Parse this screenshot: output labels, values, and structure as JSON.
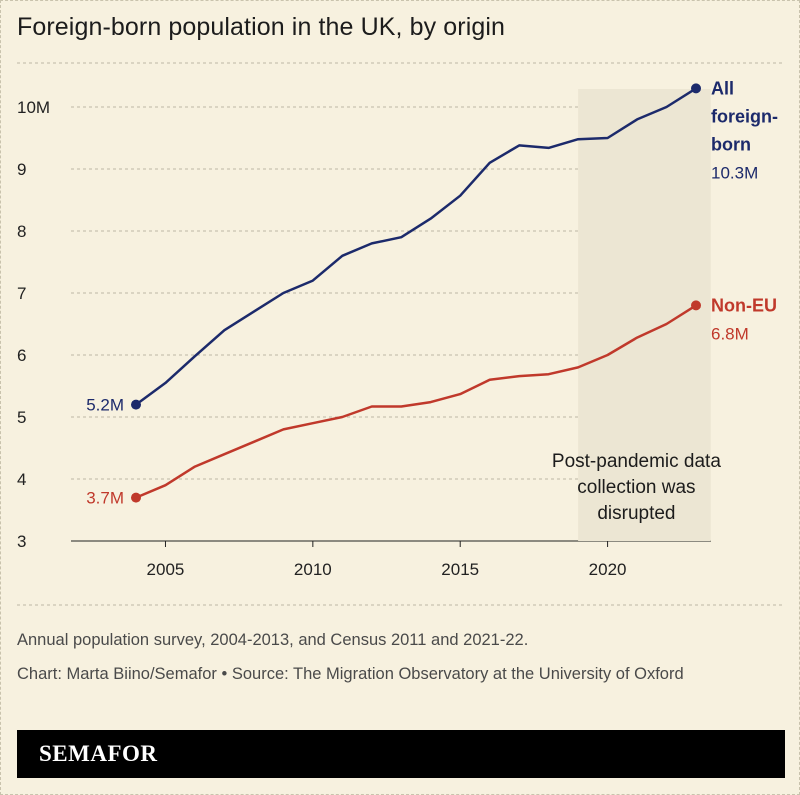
{
  "title": "Foreign-born population in the UK, by origin",
  "chart_data": {
    "type": "line",
    "x": [
      2004,
      2005,
      2006,
      2007,
      2008,
      2009,
      2010,
      2011,
      2012,
      2013,
      2014,
      2015,
      2016,
      2017,
      2018,
      2019,
      2020,
      2021,
      2022,
      2023
    ],
    "series": [
      {
        "name": "All foreign-born",
        "color": "#1c2a6b",
        "values": [
          5.2,
          5.55,
          5.98,
          6.4,
          6.7,
          7.0,
          7.2,
          7.6,
          7.8,
          7.9,
          8.2,
          8.57,
          9.1,
          9.38,
          9.34,
          9.48,
          9.5,
          9.8,
          10.0,
          10.3
        ]
      },
      {
        "name": "Non-EU",
        "color": "#c0392b",
        "values": [
          3.7,
          3.9,
          4.2,
          4.4,
          4.6,
          4.8,
          4.9,
          5.0,
          5.17,
          5.17,
          5.24,
          5.37,
          5.6,
          5.66,
          5.69,
          5.8,
          6.0,
          6.28,
          6.5,
          6.8
        ]
      }
    ],
    "start_labels": [
      "5.2M",
      "3.7M"
    ],
    "end_labels": {
      "all_name": [
        "All",
        "foreign-",
        "born"
      ],
      "all_value": "10.3M",
      "noneu_name": "Non-EU",
      "noneu_value": "6.8M"
    },
    "y_ticks": [
      3,
      4,
      5,
      6,
      7,
      8,
      9,
      10
    ],
    "y_tick_labels": [
      "3",
      "4",
      "5",
      "6",
      "7",
      "8",
      "9",
      "10M"
    ],
    "x_ticks": [
      2005,
      2010,
      2015,
      2020
    ],
    "x_tick_labels": [
      "2005",
      "2010",
      "2015",
      "2020"
    ],
    "ylim": [
      3,
      10.3
    ],
    "xlim": [
      2004,
      2023
    ],
    "shaded_region": {
      "from": 2019,
      "to": 2023.5
    },
    "annotation": [
      "Post-pandemic data",
      "collection was",
      "disrupted"
    ],
    "grid": true
  },
  "notes": {
    "survey": "Annual population survey, 2004-2013, and Census 2011 and 2021-22.",
    "credit": "Chart: Marta Biino/Semafor • Source: The Migration Observatory at the University of Oxford"
  },
  "brand": "SEMAFOR"
}
